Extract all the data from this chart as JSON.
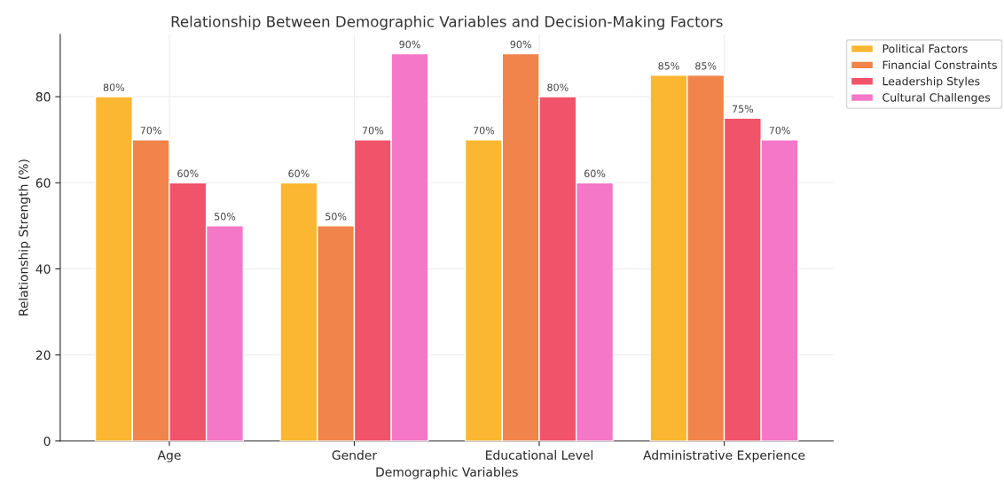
{
  "chart_data": {
    "type": "bar",
    "title": "Relationship Between Demographic Variables and Decision-Making Factors",
    "xlabel": "Demographic Variables",
    "ylabel": "Relationship Strength (%)",
    "categories": [
      "Age",
      "Gender",
      "Educational Level",
      "Administrative Experience"
    ],
    "series": [
      {
        "name": "Political Factors",
        "color": "#fbb731",
        "values": [
          80,
          60,
          70,
          85
        ],
        "value_labels": [
          "80%",
          "60%",
          "70%",
          "85%"
        ]
      },
      {
        "name": "Financial Constraints",
        "color": "#f0844a",
        "values": [
          70,
          50,
          90,
          85
        ],
        "value_labels": [
          "70%",
          "50%",
          "90%",
          "85%"
        ]
      },
      {
        "name": "Leadership Styles",
        "color": "#f0536a",
        "values": [
          60,
          70,
          80,
          75
        ],
        "value_labels": [
          "60%",
          "70%",
          "80%",
          "75%"
        ]
      },
      {
        "name": "Cultural Challenges",
        "color": "#f577c8",
        "values": [
          50,
          90,
          60,
          70
        ],
        "value_labels": [
          "50%",
          "90%",
          "60%",
          "70%"
        ]
      }
    ],
    "ylim": [
      0,
      94.5
    ],
    "yticks": [
      0,
      20,
      40,
      60,
      80
    ],
    "grid": true,
    "legend": "top right"
  }
}
